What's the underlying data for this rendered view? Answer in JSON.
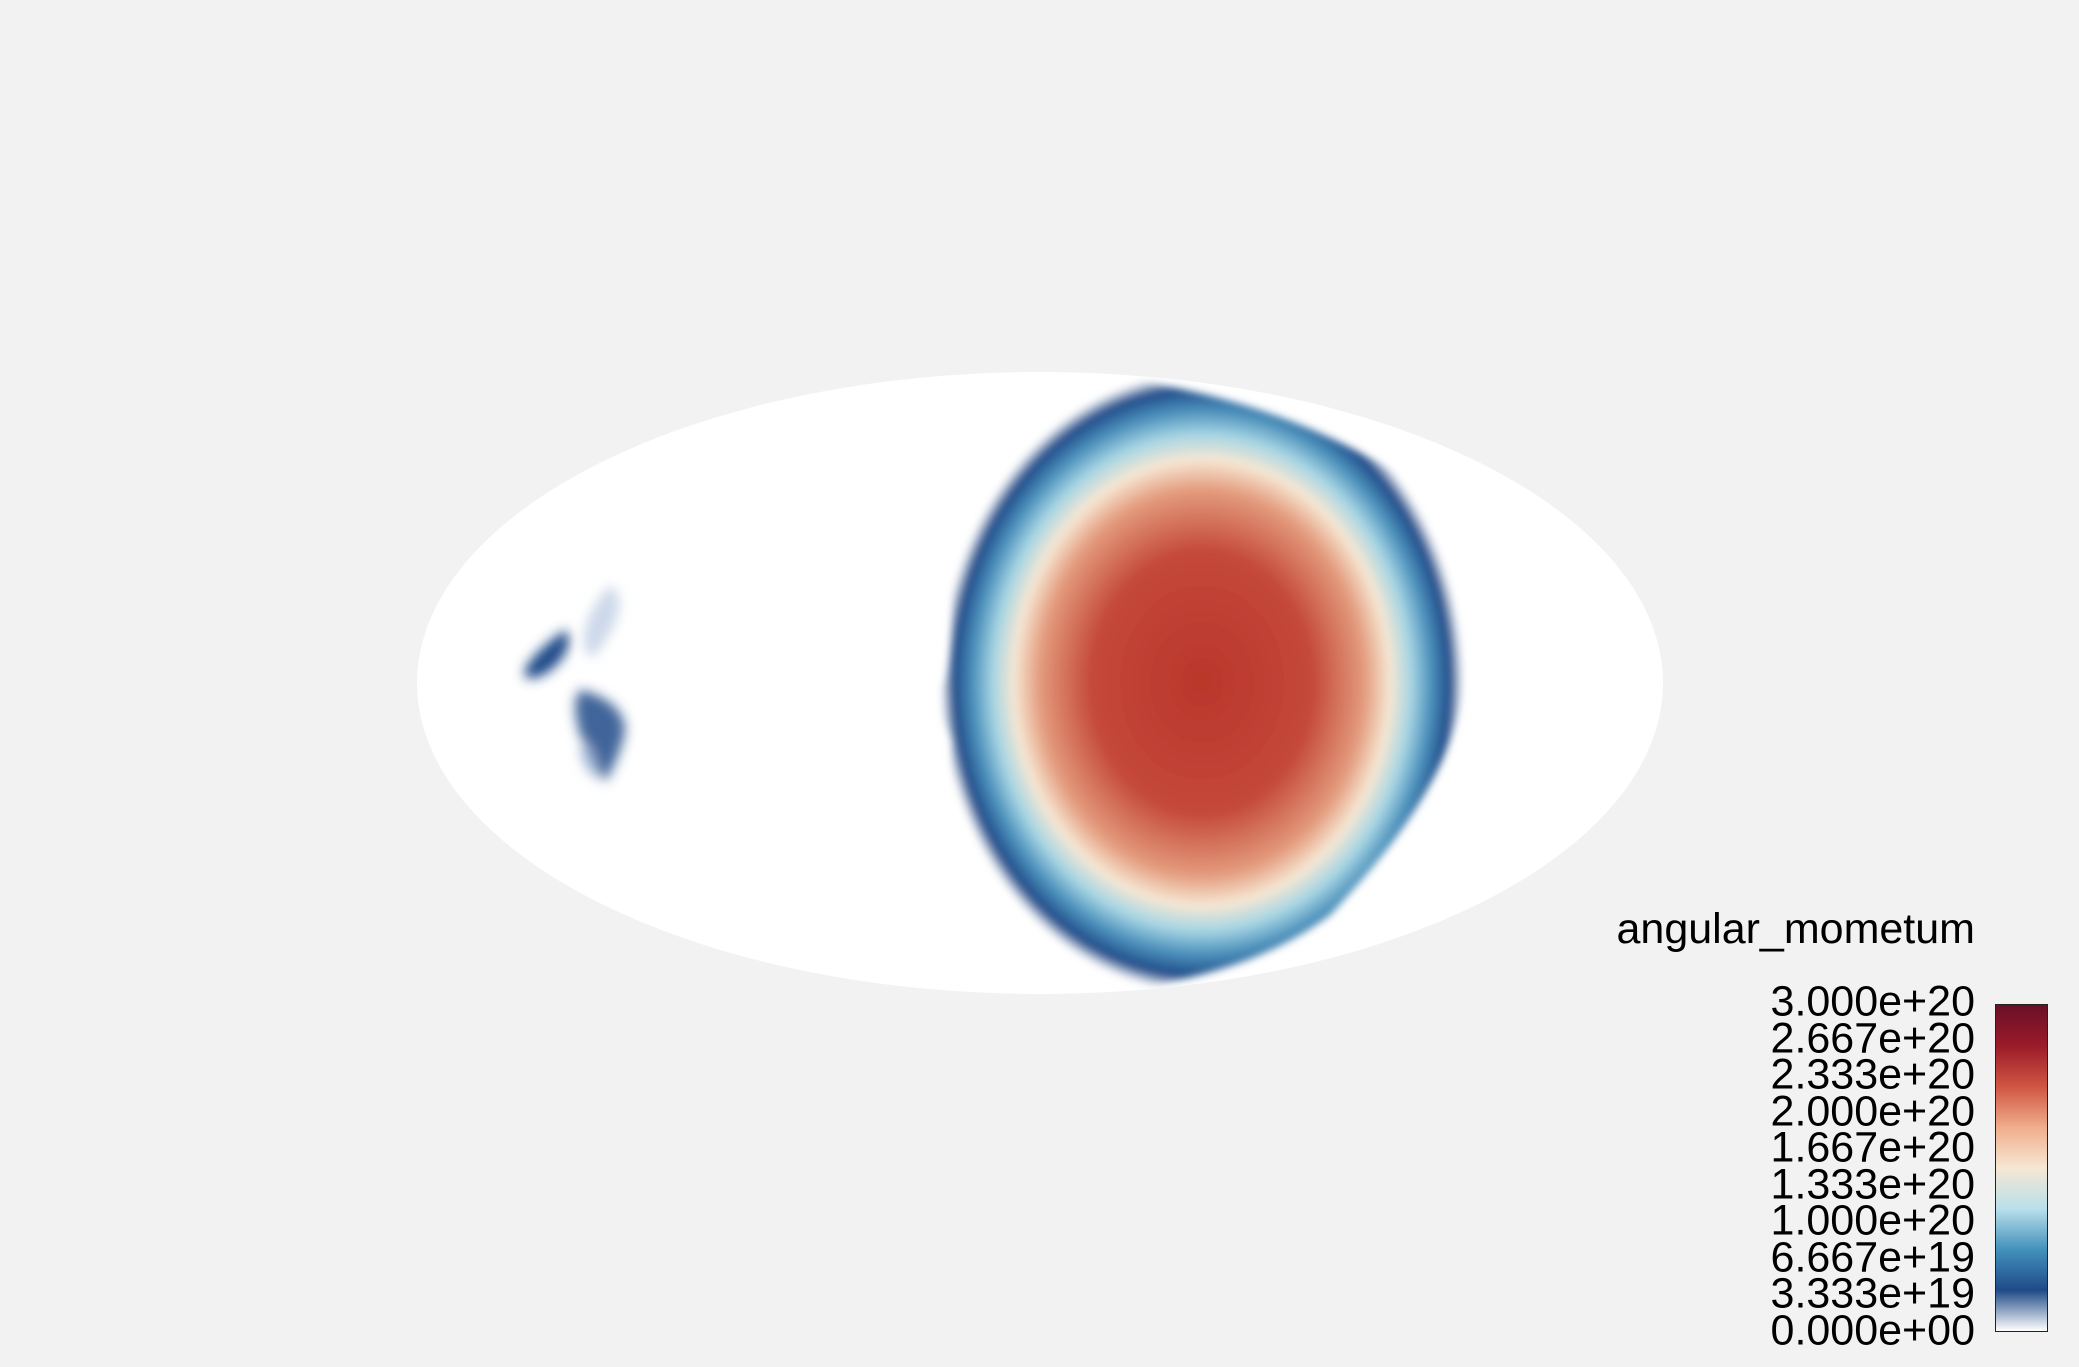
{
  "colorbar": {
    "title": "angular_mometum",
    "labels": [
      "3.000e+20",
      "2.667e+20",
      "2.333e+20",
      "2.000e+20",
      "1.667e+20",
      "1.333e+20",
      "1.000e+20",
      "6.667e+19",
      "3.333e+19",
      "0.000e+00"
    ],
    "range": [
      0,
      3e+20
    ],
    "colormap": [
      "#ffffff",
      "#1f4a88",
      "#4391bd",
      "#b9e0ea",
      "#f6e7d3",
      "#f0ad8c",
      "#cf5542",
      "#9b1b29",
      "#6a0f27"
    ]
  },
  "map": {
    "projection": "mollweide",
    "background": "#ffffff",
    "page_background": "#f2f2f2"
  }
}
